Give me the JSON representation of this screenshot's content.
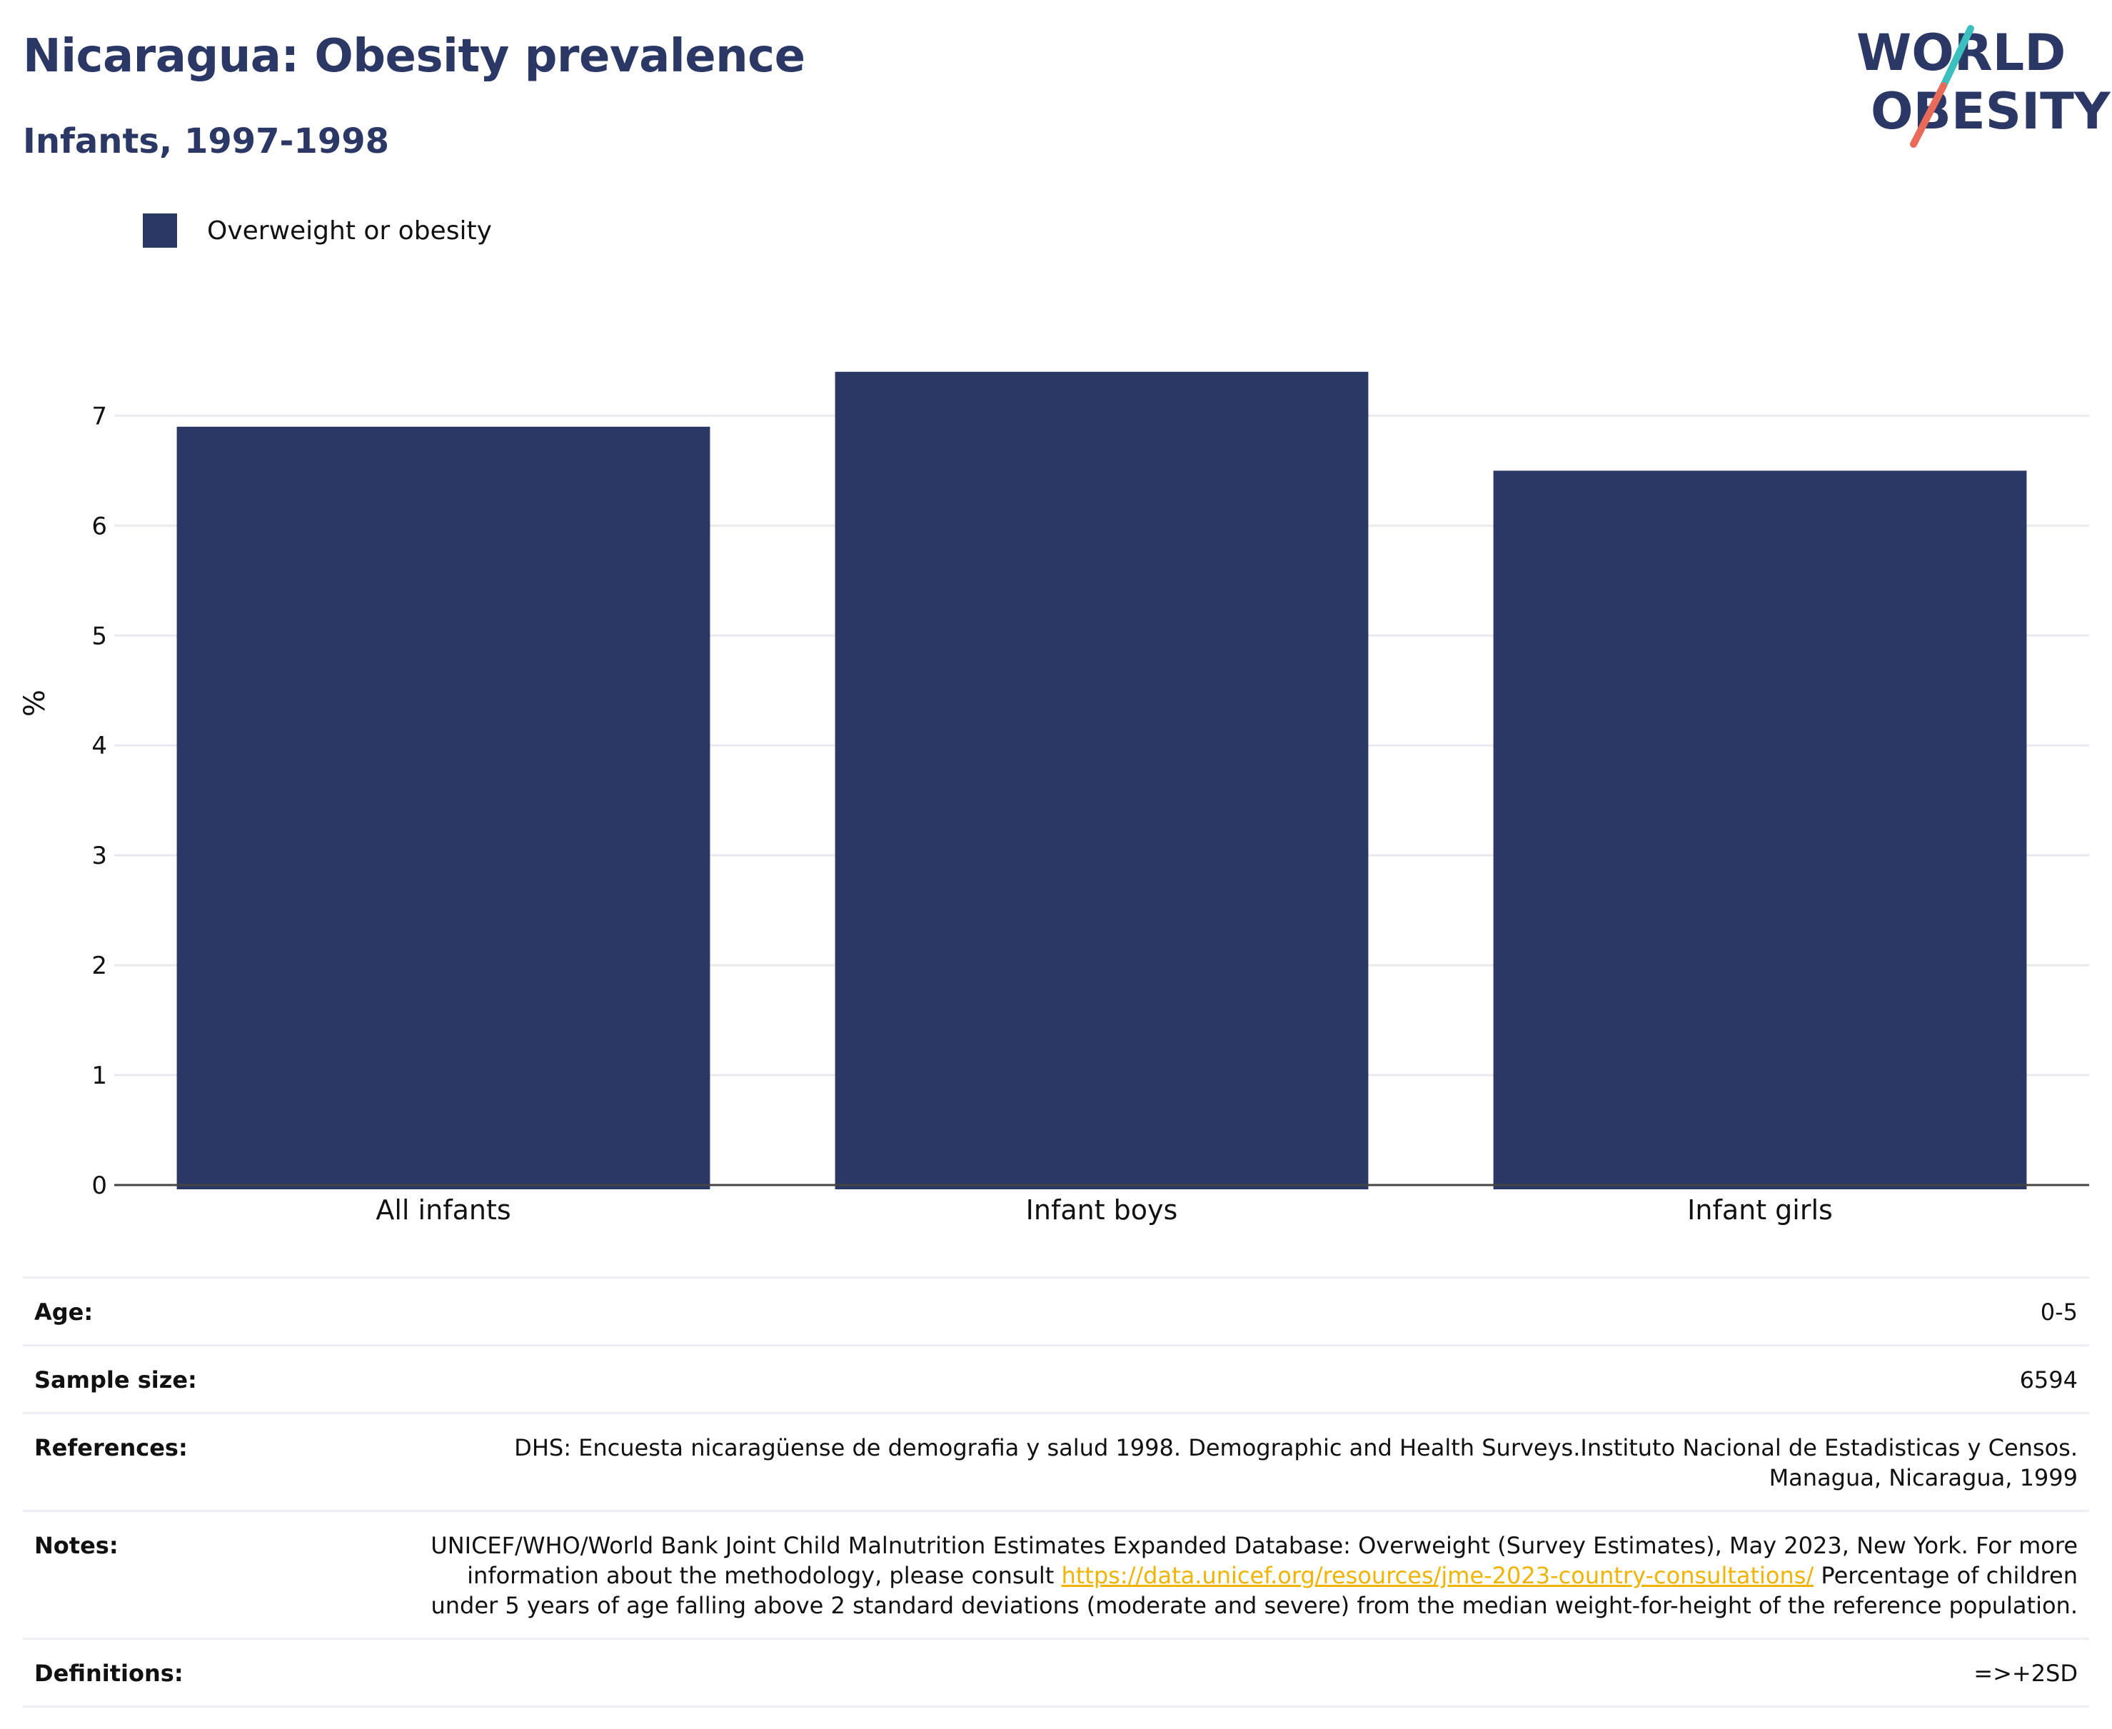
{
  "title": "Nicaragua: Obesity prevalence",
  "subtitle": "Infants, 1997-1998",
  "logo": {
    "line1": "WORLD",
    "line2": "OBESITY"
  },
  "legend": {
    "label": "Overweight or obesity",
    "color": "#2b3765"
  },
  "chart_data": {
    "type": "bar",
    "categories": [
      "All infants",
      "Infant boys",
      "Infant girls"
    ],
    "series": [
      {
        "name": "Overweight or obesity",
        "values": [
          6.9,
          7.4,
          6.5
        ],
        "color": "#2b3765"
      }
    ],
    "ylabel": "%",
    "xlabel": "",
    "ylim": [
      0,
      7.6
    ],
    "yticks": [
      0,
      1,
      2,
      3,
      4,
      5,
      6,
      7
    ],
    "grid": true
  },
  "info": {
    "age_label": "Age:",
    "age_value": "0-5",
    "sample_label": "Sample size:",
    "sample_value": "6594",
    "references_label": "References:",
    "references_value": "DHS: Encuesta nicaragüense de demografia y salud 1998. Demographic and Health Surveys.Instituto Nacional de Estadisticas y Censos. Managua, Nicaragua, 1999",
    "notes_label": "Notes:",
    "notes_text1": "UNICEF/WHO/World Bank Joint Child Malnutrition Estimates Expanded Database: Overweight (Survey Estimates), May 2023, New York. For more information about the methodology, please consult ",
    "notes_link": "https://data.unicef.org/resources/jme-2023-country-consultations/",
    "notes_text2": " Percentage of children under 5 years of age falling above 2 standard deviations (moderate and severe) from the median weight-for-height of the reference population.",
    "definitions_label": "Definitions:",
    "definitions_value": "=>+2SD"
  }
}
